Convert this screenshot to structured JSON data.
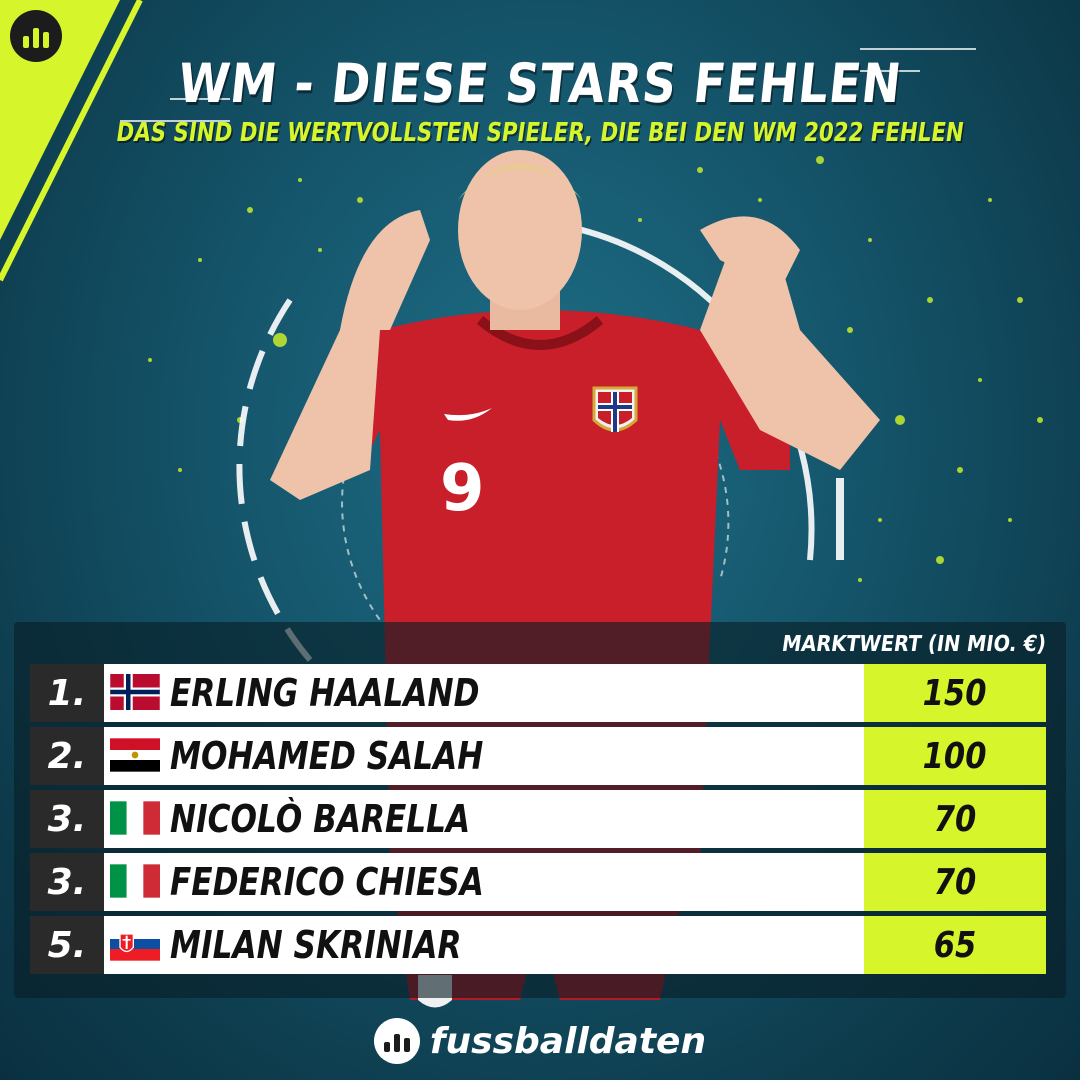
{
  "header": {
    "title": "WM - DIESE STARS FEHLEN",
    "subtitle": "DAS SIND DIE WERTVOLLSTEN SPIELER, DIE BEI DEN WM 2022 FEHLEN"
  },
  "player_photo": {
    "jersey_number": "9"
  },
  "table": {
    "column_header": "MARKTWERT (IN MIO. €)",
    "rows": [
      {
        "rank": "1.",
        "name": "ERLING HAALAND",
        "value": "150",
        "flag": "norway-flag"
      },
      {
        "rank": "2.",
        "name": "MOHAMED SALAH",
        "value": "100",
        "flag": "egypt-flag"
      },
      {
        "rank": "3.",
        "name": "NICOLÒ BARELLA",
        "value": "70",
        "flag": "italy-flag"
      },
      {
        "rank": "3.",
        "name": "FEDERICO CHIESA",
        "value": "70",
        "flag": "italy-flag"
      },
      {
        "rank": "5.",
        "name": "MILAN SKRINIAR",
        "value": "65",
        "flag": "slovakia-flag"
      }
    ]
  },
  "footer": {
    "brand": "fussballdaten"
  },
  "colors": {
    "accent": "#d7f52b",
    "background": "#15566c",
    "rank_bg": "#2a2a2a"
  }
}
